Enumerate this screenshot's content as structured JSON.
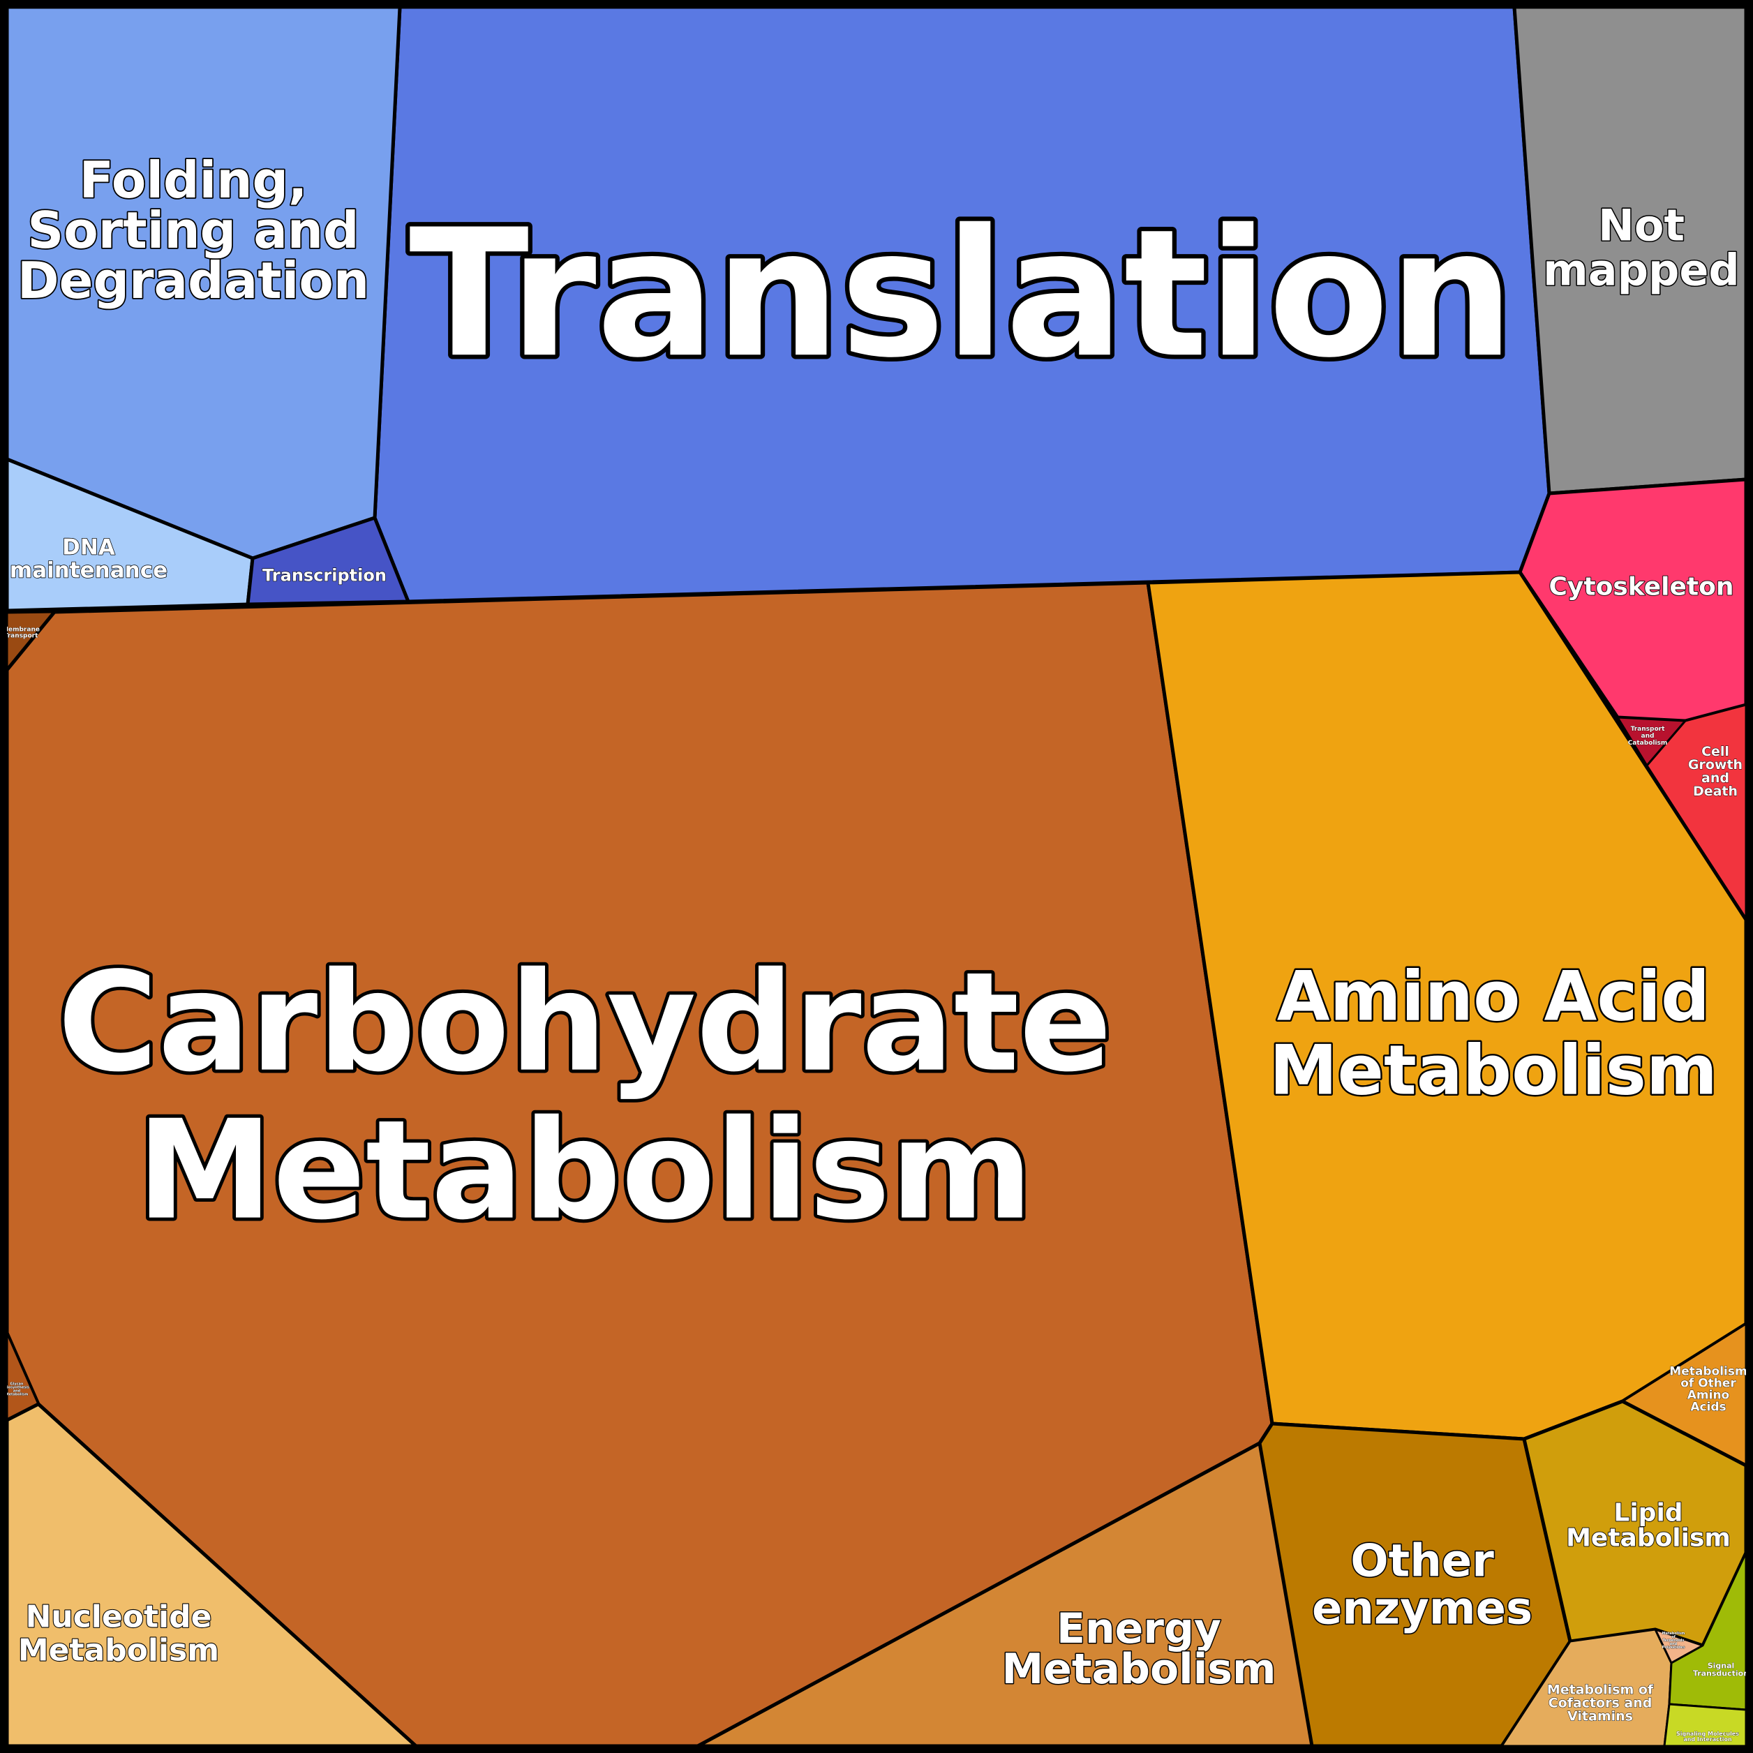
{
  "diagram": {
    "type": "voronoi-treemap",
    "frame_color": "#000000",
    "cells": [
      {
        "id": "translation",
        "lines": [
          "Translation"
        ],
        "color": "#5a79e3"
      },
      {
        "id": "folding",
        "lines": [
          "Folding,",
          "Sorting and",
          "Degradation"
        ],
        "color": "#78a0ee"
      },
      {
        "id": "dna-maintenance",
        "lines": [
          "DNA",
          "maintenance"
        ],
        "color": "#a9cdfa"
      },
      {
        "id": "transcription",
        "lines": [
          "Transcription"
        ],
        "color": "#4654c6"
      },
      {
        "id": "not-mapped",
        "lines": [
          "Not",
          "mapped"
        ],
        "color": "#8f8f8f"
      },
      {
        "id": "cytoskeleton",
        "lines": [
          "Cytoskeleton"
        ],
        "color": "#ff396d"
      },
      {
        "id": "transport-catabolism",
        "lines": [
          "Transport",
          "and",
          "Catabolism"
        ],
        "color": "#b8122e"
      },
      {
        "id": "cell-growth-death",
        "lines": [
          "Cell",
          "Growth",
          "and",
          "Death"
        ],
        "color": "#f2343e"
      },
      {
        "id": "membrane-transport",
        "lines": [
          "Membrane",
          "Transport"
        ],
        "color": "#9a4a12"
      },
      {
        "id": "carbohydrate",
        "lines": [
          "Carbohydrate",
          "Metabolism"
        ],
        "color": "#c46526"
      },
      {
        "id": "amino-acid",
        "lines": [
          "Amino Acid",
          "Metabolism"
        ],
        "color": "#efa311"
      },
      {
        "id": "tiny-left",
        "lines": [
          "Glycan",
          "Biosynthesis",
          "and",
          "Metabolism"
        ],
        "color": "#b2561a"
      },
      {
        "id": "nucleotide",
        "lines": [
          "Nucleotide",
          "Metabolism"
        ],
        "color": "#f0be6b"
      },
      {
        "id": "energy",
        "lines": [
          "Energy",
          "Metabolism"
        ],
        "color": "#d38634"
      },
      {
        "id": "other-enzymes",
        "lines": [
          "Other",
          "enzymes"
        ],
        "color": "#bc7a00"
      },
      {
        "id": "other-amino-acids",
        "lines": [
          "Metabolism",
          "of Other",
          "Amino",
          "Acids"
        ],
        "color": "#e6921e"
      },
      {
        "id": "lipid",
        "lines": [
          "Lipid",
          "Metabolism"
        ],
        "color": "#d09e0c"
      },
      {
        "id": "cofactors",
        "lines": [
          "Metabolism of",
          "Cofactors and",
          "Vitamins"
        ],
        "color": "#e5ac5c"
      },
      {
        "id": "terpenoids",
        "lines": [
          "Metabolism",
          "of",
          "Terpenoids",
          "and",
          "Polyketides"
        ],
        "color": "#f3b38a"
      },
      {
        "id": "signal-transduction",
        "lines": [
          "Signal",
          "Transduction"
        ],
        "color": "#9fbb07"
      },
      {
        "id": "signaling-molecules",
        "lines": [
          "Signaling Molecules",
          "and Interaction"
        ],
        "color": "#c8d925"
      }
    ]
  }
}
